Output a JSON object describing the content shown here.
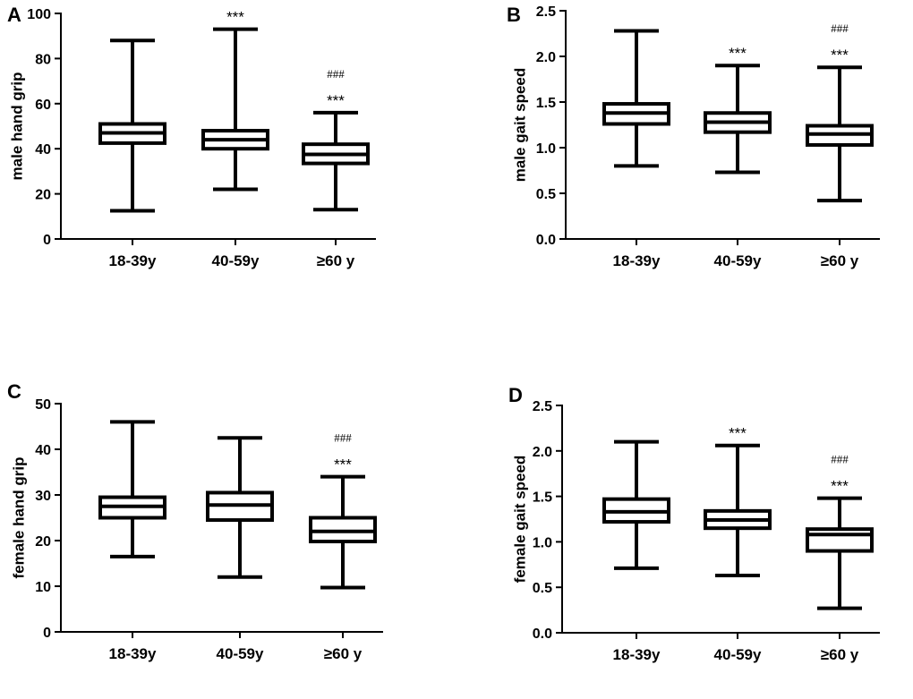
{
  "chart_data": [
    {
      "panel": "A",
      "type": "box",
      "ylabel": "male hand grip",
      "ylim": [
        0,
        100
      ],
      "yticks": [
        0,
        20,
        40,
        60,
        80,
        100
      ],
      "categories": [
        "18-39y",
        "40-59y",
        "≥60 y"
      ],
      "boxes": [
        {
          "min": 12.5,
          "q1": 42.5,
          "median": 47,
          "q3": 51,
          "max": 88
        },
        {
          "min": 22,
          "q1": 40,
          "median": 44,
          "q3": 48,
          "max": 93
        },
        {
          "min": 13,
          "q1": 33.5,
          "median": 37.5,
          "q3": 42,
          "max": 56
        }
      ],
      "annotations": [
        {
          "category_index": 1,
          "lines": [
            "***"
          ]
        },
        {
          "category_index": 2,
          "lines": [
            "###",
            "***"
          ]
        }
      ]
    },
    {
      "panel": "B",
      "type": "box",
      "ylabel": "male gait speed",
      "ylim": [
        0,
        2.5
      ],
      "yticks": [
        "0.0",
        "0.5",
        "1.0",
        "1.5",
        "2.0",
        "2.5"
      ],
      "categories": [
        "18-39y",
        "40-59y",
        "≥60 y"
      ],
      "boxes": [
        {
          "min": 0.8,
          "q1": 1.26,
          "median": 1.38,
          "q3": 1.48,
          "max": 2.28
        },
        {
          "min": 0.73,
          "q1": 1.17,
          "median": 1.28,
          "q3": 1.38,
          "max": 1.9
        },
        {
          "min": 0.42,
          "q1": 1.03,
          "median": 1.15,
          "q3": 1.24,
          "max": 1.88
        }
      ],
      "annotations": [
        {
          "category_index": 1,
          "lines": [
            "***"
          ]
        },
        {
          "category_index": 2,
          "lines": [
            "###",
            "***"
          ]
        }
      ]
    },
    {
      "panel": "C",
      "type": "box",
      "ylabel": "female hand grip",
      "ylim": [
        0,
        50
      ],
      "yticks": [
        0,
        10,
        20,
        30,
        40,
        50
      ],
      "categories": [
        "18-39y",
        "40-59y",
        "≥60 y"
      ],
      "boxes": [
        {
          "min": 16.5,
          "q1": 25,
          "median": 27.5,
          "q3": 29.5,
          "max": 46
        },
        {
          "min": 12,
          "q1": 24.5,
          "median": 27.8,
          "q3": 30.5,
          "max": 42.5
        },
        {
          "min": 9.7,
          "q1": 19.8,
          "median": 22,
          "q3": 25,
          "max": 34
        }
      ],
      "annotations": [
        {
          "category_index": 2,
          "lines": [
            "###",
            "***"
          ]
        }
      ]
    },
    {
      "panel": "D",
      "type": "box",
      "ylabel": "female gait speed",
      "ylim": [
        0,
        2.5
      ],
      "yticks": [
        "0.0",
        "0.5",
        "1.0",
        "1.5",
        "2.0",
        "2.5"
      ],
      "categories": [
        "18-39y",
        "40-59y",
        "≥60 y"
      ],
      "boxes": [
        {
          "min": 0.71,
          "q1": 1.22,
          "median": 1.33,
          "q3": 1.47,
          "max": 2.1
        },
        {
          "min": 0.63,
          "q1": 1.15,
          "median": 1.24,
          "q3": 1.34,
          "max": 2.06
        },
        {
          "min": 0.27,
          "q1": 0.9,
          "median": 1.08,
          "q3": 1.14,
          "max": 1.48
        }
      ],
      "annotations": [
        {
          "category_index": 1,
          "lines": [
            "***"
          ]
        },
        {
          "category_index": 2,
          "lines": [
            "###",
            "***"
          ]
        }
      ]
    }
  ]
}
